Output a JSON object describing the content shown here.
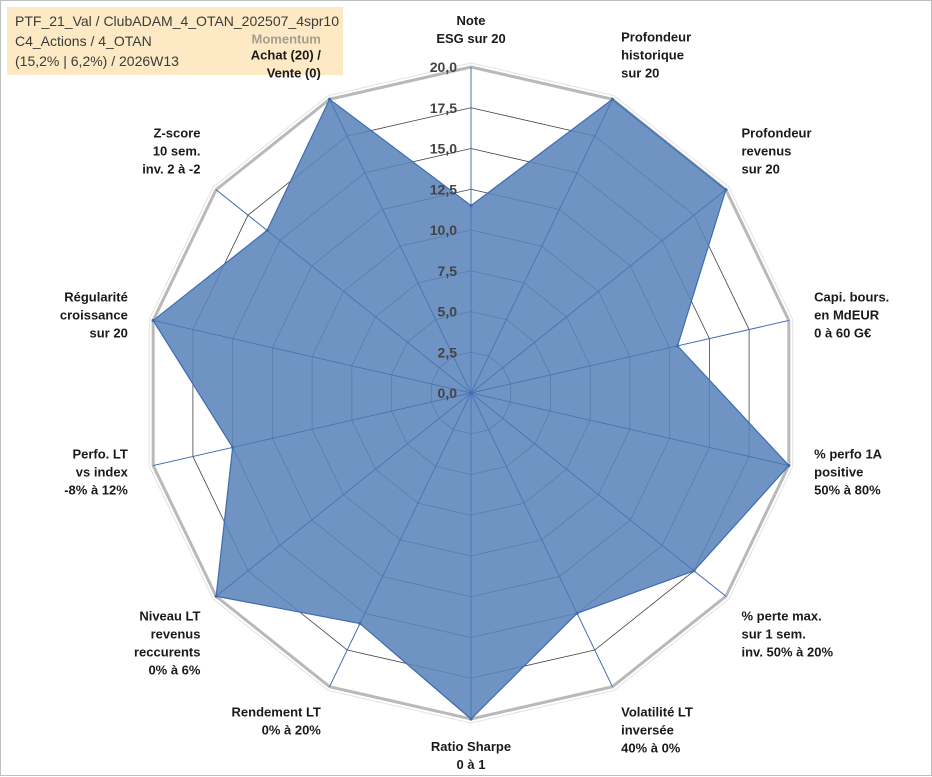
{
  "info": {
    "line1": "PTF_21_Val / ClubADAM_4_OTAN_202507_4spr10",
    "line2": "C4_Actions / 4_OTAN",
    "line3": "(15,2% | 6,2%) / 2026W13"
  },
  "colors": {
    "fill": "#5b84b9",
    "stroke": "#3f6cb0",
    "ring": "#b9b9b9",
    "grid": "#444444",
    "info_bg": "#fde9c4",
    "momentum": "#a39e91"
  },
  "chart_data": {
    "type": "radar",
    "title": "",
    "range": [
      0,
      20
    ],
    "ticks": [
      "0,0",
      "2,5",
      "5,0",
      "7,5",
      "10,0",
      "12,5",
      "15,0",
      "17,5",
      "20,0"
    ],
    "extra_label": "Momentum",
    "axes": [
      {
        "lines": [
          "Note",
          "ESG sur 20"
        ],
        "value": 11.5
      },
      {
        "lines": [
          "Profondeur",
          "historique",
          "sur 20"
        ],
        "value": 20
      },
      {
        "lines": [
          "Profondeur",
          "revenus",
          "sur 20"
        ],
        "value": 20
      },
      {
        "lines": [
          "Capi. bours.",
          "en MdEUR",
          "0 à 60 G€"
        ],
        "value": 13
      },
      {
        "lines": [
          "% perfo 1A",
          "positive",
          "50% à 80%"
        ],
        "value": 20
      },
      {
        "lines": [
          "% perte max.",
          "sur 1 sem.",
          "inv. 50% à 20%"
        ],
        "value": 17.5
      },
      {
        "lines": [
          "Volatilité LT",
          "inversée",
          "40% à 0%"
        ],
        "value": 15
      },
      {
        "lines": [
          "Ratio Sharpe",
          "0 à 1"
        ],
        "value": 20
      },
      {
        "lines": [
          "Rendement LT",
          "0% à 20%"
        ],
        "value": 15.7
      },
      {
        "lines": [
          "Niveau LT",
          "revenus",
          "reccurents",
          "0% à 6%"
        ],
        "value": 20
      },
      {
        "lines": [
          "Perfo. LT",
          "vs index",
          "-8% à 12%"
        ],
        "value": 15
      },
      {
        "lines": [
          "Régularité",
          "croissance",
          "sur 20"
        ],
        "value": 20
      },
      {
        "lines": [
          "Z-score",
          "10 sem.",
          "inv. 2 à -2"
        ],
        "value": 16
      },
      {
        "lines": [
          "Achat (20) /",
          "Vente (0)"
        ],
        "value": 20
      }
    ]
  }
}
